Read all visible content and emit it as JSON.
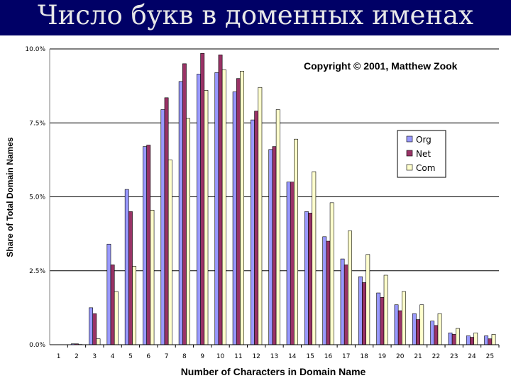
{
  "slide": {
    "title": "Число букв в доменных именах",
    "header_color": "#000066"
  },
  "chart_data": {
    "type": "bar",
    "annotation": "Copyright © 2001, Matthew Zook",
    "xlabel": "Number of Characters in Domain Name",
    "ylabel": "Share of Total Domain Names",
    "ylim": [
      0,
      10
    ],
    "ytick_labels": [
      "0.0%",
      "2.5%",
      "5.0%",
      "7.5%",
      "10.0%"
    ],
    "ytick_values": [
      0,
      2.5,
      5,
      7.5,
      10
    ],
    "grid": "horizontal",
    "legend_position": "right",
    "categories": [
      "1",
      "2",
      "3",
      "4",
      "5",
      "6",
      "7",
      "8",
      "9",
      "10",
      "11",
      "12",
      "13",
      "14",
      "15",
      "16",
      "17",
      "18",
      "19",
      "20",
      "21",
      "22",
      "23",
      "24",
      "25"
    ],
    "series": [
      {
        "name": "Org",
        "color": "#9999ff",
        "values": [
          0.0,
          0.03,
          1.25,
          3.4,
          5.25,
          6.7,
          7.95,
          8.9,
          9.15,
          9.2,
          8.55,
          7.6,
          6.6,
          5.5,
          4.5,
          3.65,
          2.9,
          2.3,
          1.75,
          1.35,
          1.05,
          0.8,
          0.4,
          0.3,
          0.3
        ]
      },
      {
        "name": "Net",
        "color": "#993366",
        "values": [
          0.0,
          0.03,
          1.05,
          2.7,
          4.5,
          6.75,
          8.35,
          9.5,
          9.85,
          9.8,
          9.0,
          7.9,
          6.7,
          5.5,
          4.45,
          3.5,
          2.7,
          2.1,
          1.6,
          1.15,
          0.85,
          0.65,
          0.35,
          0.25,
          0.2
        ]
      },
      {
        "name": "Com",
        "color": "#ffffcc",
        "values": [
          0.0,
          0.01,
          0.2,
          1.8,
          2.65,
          4.55,
          6.25,
          7.65,
          8.6,
          9.3,
          9.25,
          8.7,
          7.95,
          6.95,
          5.85,
          4.8,
          3.85,
          3.05,
          2.35,
          1.8,
          1.35,
          1.05,
          0.55,
          0.4,
          0.35
        ]
      }
    ]
  }
}
